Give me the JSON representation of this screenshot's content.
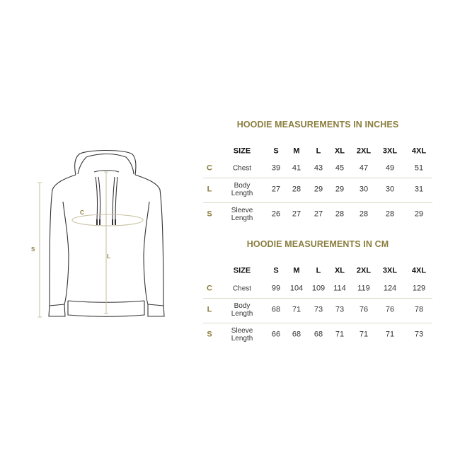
{
  "diagram": {
    "labels": {
      "chest": "C",
      "length": "L",
      "sleeve": "S"
    },
    "guide_color": "#c9c3a6",
    "outline_color": "#333333"
  },
  "colors": {
    "accent": "#8a7d3e",
    "divider": "#dcd9c8"
  },
  "tables": [
    {
      "title": "HOODIE MEASUREMENTS IN INCHES",
      "header": [
        "SIZE",
        "S",
        "M",
        "L",
        "XL",
        "2XL",
        "3XL",
        "4XL"
      ],
      "rows": [
        {
          "letter": "C",
          "label": "Chest",
          "values": [
            "39",
            "41",
            "43",
            "45",
            "47",
            "49",
            "51"
          ]
        },
        {
          "letter": "L",
          "label": "Body\nLength",
          "values": [
            "27",
            "28",
            "29",
            "29",
            "30",
            "30",
            "31"
          ]
        },
        {
          "letter": "S",
          "label": "Sleeve\nLength",
          "values": [
            "26",
            "27",
            "27",
            "28",
            "28",
            "28",
            "29"
          ]
        }
      ]
    },
    {
      "title": "HOODIE MEASUREMENTS IN CM",
      "header": [
        "SIZE",
        "S",
        "M",
        "L",
        "XL",
        "2XL",
        "3XL",
        "4XL"
      ],
      "rows": [
        {
          "letter": "C",
          "label": "Chest",
          "values": [
            "99",
            "104",
            "109",
            "114",
            "119",
            "124",
            "129"
          ]
        },
        {
          "letter": "L",
          "label": "Body\nLength",
          "values": [
            "68",
            "71",
            "73",
            "73",
            "76",
            "76",
            "78"
          ]
        },
        {
          "letter": "S",
          "label": "Sleeve\nLength",
          "values": [
            "66",
            "68",
            "68",
            "71",
            "71",
            "71",
            "73"
          ]
        }
      ]
    }
  ]
}
